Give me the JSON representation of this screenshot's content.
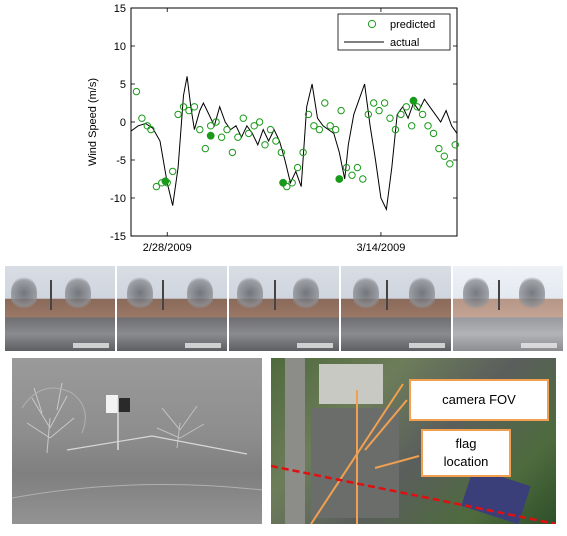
{
  "chart_data": {
    "type": "scatter",
    "ylabel": "Wind Speed (m/s)",
    "ylim": [
      -15,
      15
    ],
    "yticks": [
      15,
      10,
      5,
      0,
      -5,
      -10,
      -15
    ],
    "xlim": [
      0,
      18
    ],
    "xtick_positions": [
      2.0,
      13.8
    ],
    "xtick_labels": [
      "2/28/2009",
      "3/14/2009"
    ],
    "legend": {
      "placement": "top-right",
      "entries": [
        "predicted",
        "actual"
      ]
    },
    "colors": {
      "predicted": "#1a9a1a",
      "actual": "#000000"
    },
    "series": [
      {
        "name": "actual",
        "style": "line",
        "x": [
          0.0,
          0.4,
          0.8,
          1.2,
          1.6,
          2.0,
          2.3,
          2.6,
          2.9,
          3.1,
          3.3,
          3.5,
          3.8,
          4.0,
          4.3,
          4.6,
          4.9,
          5.2,
          5.5,
          5.8,
          6.1,
          6.4,
          6.7,
          7.0,
          7.3,
          7.6,
          7.9,
          8.2,
          8.5,
          8.8,
          9.1,
          9.4,
          9.7,
          10.0,
          10.3,
          10.6,
          10.9,
          11.2,
          11.5,
          11.8,
          12.0,
          12.3,
          12.6,
          12.9,
          13.2,
          13.5,
          13.8,
          14.1,
          14.4,
          14.7,
          15.0,
          15.3,
          15.6,
          15.9,
          16.2,
          16.5,
          16.8,
          17.1,
          17.4,
          17.7,
          18.0
        ],
        "y": [
          -1.2,
          -0.5,
          -0.2,
          -0.8,
          -2.5,
          -8.0,
          -11.0,
          -6.0,
          3.5,
          6.0,
          2.0,
          -1.0,
          1.5,
          2.5,
          1.0,
          -0.5,
          2.0,
          0.0,
          -1.0,
          -0.5,
          -2.0,
          -0.5,
          -1.5,
          -3.0,
          -1.0,
          -2.5,
          -1.0,
          -2.5,
          -5.0,
          -8.0,
          -6.5,
          -8.5,
          2.0,
          5.0,
          0.5,
          -0.5,
          -1.0,
          -1.5,
          -4.0,
          -7.5,
          -3.0,
          1.0,
          3.0,
          5.0,
          -0.5,
          -5.0,
          -10.0,
          -11.5,
          -6.0,
          1.0,
          2.0,
          0.5,
          2.5,
          1.5,
          3.0,
          2.0,
          1.0,
          0.0,
          1.5,
          -0.5,
          -1.5
        ]
      },
      {
        "name": "predicted",
        "style": "markers",
        "x": [
          0.3,
          0.6,
          0.9,
          1.1,
          1.4,
          1.7,
          2.0,
          2.3,
          2.6,
          2.9,
          3.2,
          3.5,
          3.8,
          4.1,
          4.4,
          4.7,
          5.0,
          5.3,
          5.6,
          5.9,
          6.2,
          6.5,
          6.8,
          7.1,
          7.4,
          7.7,
          8.0,
          8.3,
          8.6,
          8.9,
          9.2,
          9.5,
          9.8,
          10.1,
          10.4,
          10.7,
          11.0,
          11.3,
          11.6,
          11.9,
          12.2,
          12.5,
          12.8,
          13.1,
          13.4,
          13.7,
          14.0,
          14.3,
          14.6,
          14.9,
          15.2,
          15.5,
          15.8,
          16.1,
          16.4,
          16.7,
          17.0,
          17.3,
          17.6,
          17.9
        ],
        "y": [
          4.0,
          0.5,
          -0.5,
          -1.0,
          -8.5,
          -8.0,
          -8.0,
          -6.5,
          1.0,
          2.0,
          1.5,
          2.0,
          -1.0,
          -3.5,
          -0.5,
          0.0,
          -2.0,
          -1.0,
          -4.0,
          -2.0,
          0.5,
          -1.5,
          -0.5,
          0.0,
          -3.0,
          -1.0,
          -2.5,
          -4.0,
          -8.5,
          -8.0,
          -6.0,
          -4.0,
          1.0,
          -0.5,
          -1.0,
          2.5,
          -0.5,
          -1.0,
          1.5,
          -6.0,
          -7.0,
          -6.0,
          -7.5,
          1.0,
          2.5,
          1.5,
          2.5,
          0.5,
          -1.0,
          1.0,
          2.0,
          -0.5,
          2.0,
          1.0,
          -0.5,
          -1.5,
          -3.5,
          -4.5,
          -5.5,
          -3.0
        ]
      },
      {
        "name": "predicted-highlight",
        "style": "filled-markers",
        "x": [
          1.9,
          4.4,
          8.4,
          11.5,
          15.6
        ],
        "y": [
          -7.8,
          -1.8,
          -8.0,
          -7.5,
          2.8
        ]
      }
    ]
  },
  "photos": {
    "frames": [
      "frame-1",
      "frame-2",
      "frame-3",
      "frame-4",
      "frame-5"
    ]
  },
  "map_labels": {
    "camera_fov": "camera FOV",
    "flag_location_line1": "flag",
    "flag_location_line2": "location"
  }
}
